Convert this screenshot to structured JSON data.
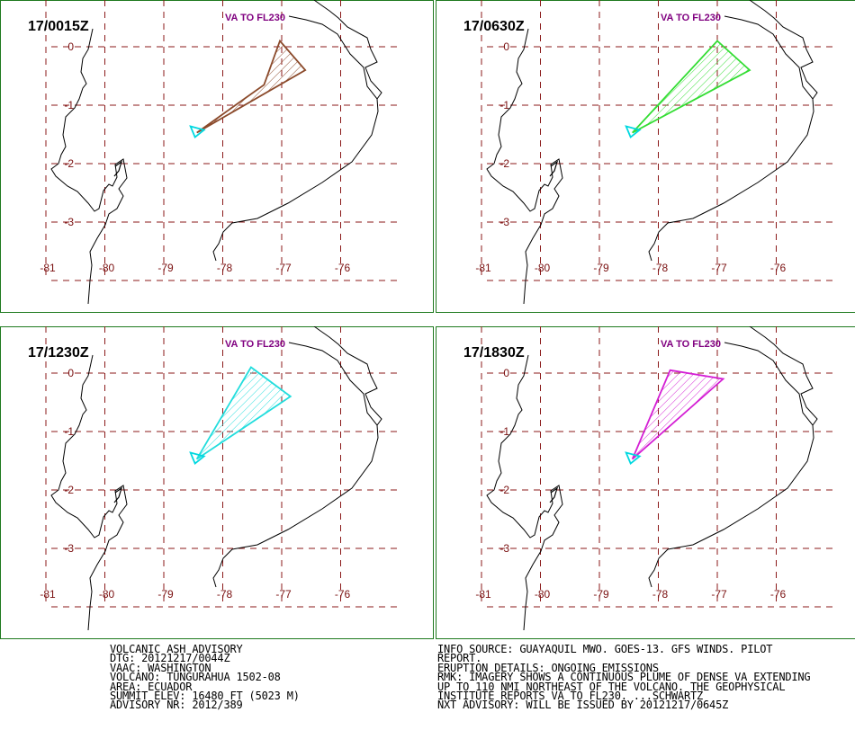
{
  "frame_color": "#1f7a1f",
  "grid_color": "#8b1a1a",
  "label_color": "#7a1010",
  "title_color": "#800080",
  "coast_color": "#000000",
  "volcano_color": "#00d8e0",
  "axis": {
    "lat_labels": [
      "0",
      "-1",
      "-2",
      "-3"
    ],
    "lon_labels": [
      "-81",
      "-80",
      "-79",
      "-78",
      "-77",
      "-76"
    ]
  },
  "panels": [
    {
      "time": "17/0015Z",
      "level": "VA TO FL230",
      "color": "#8b4a2b",
      "polygon": [
        [
          -78.44,
          -1.47
        ],
        [
          -77.3,
          -0.65
        ],
        [
          -77.03,
          0.1
        ],
        [
          -76.6,
          -0.4
        ]
      ]
    },
    {
      "time": "17/0630Z",
      "level": "VA TO FL230",
      "color": "#33dd33",
      "polygon": [
        [
          -78.44,
          -1.47
        ],
        [
          -77.0,
          0.1
        ],
        [
          -76.45,
          -0.4
        ]
      ]
    },
    {
      "time": "17/1230Z",
      "level": "VA TO FL230",
      "color": "#22dddd",
      "polygon": [
        [
          -78.44,
          -1.47
        ],
        [
          -77.52,
          0.1
        ],
        [
          -76.85,
          -0.4
        ]
      ]
    },
    {
      "time": "17/1830Z",
      "level": "VA TO FL230",
      "color": "#d41fd4",
      "polygon": [
        [
          -78.44,
          -1.47
        ],
        [
          -77.8,
          0.05
        ],
        [
          -76.9,
          -0.1
        ]
      ]
    }
  ],
  "volcano": {
    "name": "TUNGURAHUA",
    "lon": -78.44,
    "lat": -1.47
  },
  "advisory_left": [
    "VOLCANIC ASH ADVISORY",
    "DTG: 20121217/0044Z",
    "VAAC: WASHINGTON",
    "VOLCANO: TUNGURAHUA 1502-08",
    "AREA: ECUADOR",
    "SUMMIT ELEV: 16480 FT (5023 M)",
    "ADVISORY NR: 2012/389"
  ],
  "advisory_right": [
    "INFO SOURCE: GUAYAQUIL MWO. GOES-13. GFS WINDS. PILOT",
    "REPORT.",
    "ERUPTION DETAILS: ONGOING EMISSIONS",
    "RMK: IMAGERY SHOWS A CONTINUOUS PLUME OF DENSE VA EXTENDING",
    "UP TO 110 NMI NORTHEAST OF THE VOLCANO. THE GEOPHYSICAL",
    "INSTITUTE REPORTS VA TO FL230. ...SCHWARTZ",
    "NXT ADVISORY: WILL BE ISSUED BY 20121217/0645Z"
  ]
}
